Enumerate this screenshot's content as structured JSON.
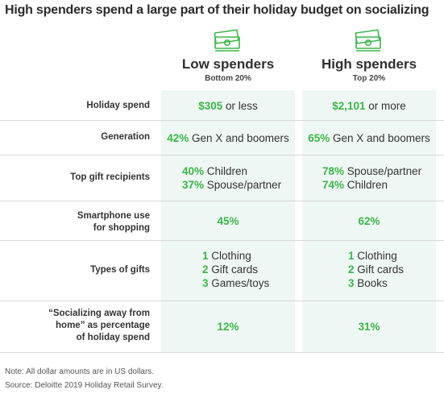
{
  "title": "High spenders spend a large part of their holiday budget on socializing",
  "columns": {
    "low": {
      "name": "Low spenders",
      "sub": "Bottom 20%"
    },
    "high": {
      "name": "High spenders",
      "sub": "Top 20%"
    }
  },
  "rows": {
    "holiday_spend": {
      "label": "Holiday spend",
      "low": {
        "num": "$305",
        "text": " or less"
      },
      "high": {
        "num": "$2,101",
        "text": " or more"
      }
    },
    "generation": {
      "label": "Generation",
      "low": {
        "num": "42%",
        "text": " Gen X and boomers"
      },
      "high": {
        "num": "65%",
        "text": " Gen X and boomers"
      }
    },
    "gift_recipients": {
      "label": "Top gift recipients",
      "low": [
        {
          "num": "40%",
          "text": " Children"
        },
        {
          "num": "37%",
          "text": " Spouse/partner"
        }
      ],
      "high": [
        {
          "num": "78%",
          "text": " Spouse/partner"
        },
        {
          "num": "74%",
          "text": " Children"
        }
      ]
    },
    "smartphone": {
      "label_line1": "Smartphone use",
      "label_line2": "for shopping",
      "low": "45%",
      "high": "62%"
    },
    "types": {
      "label": "Types of gifts",
      "low": [
        {
          "num": "1",
          "text": " Clothing"
        },
        {
          "num": "2",
          "text": " Gift cards"
        },
        {
          "num": "3",
          "text": " Games/toys"
        }
      ],
      "high": [
        {
          "num": "1",
          "text": " Clothing"
        },
        {
          "num": "2",
          "text": " Gift cards"
        },
        {
          "num": "3",
          "text": " Books"
        }
      ]
    },
    "socializing": {
      "label_line1": "“Socializing away from",
      "label_line2": "home” as percentage",
      "label_line3": "of holiday spend",
      "low": "12%",
      "high": "31%"
    }
  },
  "note": "Note: All dollar amounts are in US dollars.",
  "source": "Source: Deloitte 2019 Holiday Retail Survey.",
  "colors": {
    "accent": "#3db54a",
    "column_bg": "#eef7f3",
    "text": "#333333"
  },
  "chart_data": {
    "type": "table",
    "title": "High spenders spend a large part of their holiday budget on socializing",
    "columns": [
      "Low spenders (Bottom 20%)",
      "High spenders (Top 20%)"
    ],
    "rows": [
      {
        "metric": "Holiday spend",
        "low": "$305 or less",
        "high": "$2,101 or more"
      },
      {
        "metric": "Generation",
        "low": "42% Gen X and boomers",
        "high": "65% Gen X and boomers"
      },
      {
        "metric": "Top gift recipients",
        "low": [
          "40% Children",
          "37% Spouse/partner"
        ],
        "high": [
          "78% Spouse/partner",
          "74% Children"
        ]
      },
      {
        "metric": "Smartphone use for shopping",
        "low": 45,
        "high": 62
      },
      {
        "metric": "Types of gifts",
        "low": [
          "Clothing",
          "Gift cards",
          "Games/toys"
        ],
        "high": [
          "Clothing",
          "Gift cards",
          "Books"
        ]
      },
      {
        "metric": "“Socializing away from home” as percentage of holiday spend",
        "low": 12,
        "high": 31
      }
    ]
  }
}
